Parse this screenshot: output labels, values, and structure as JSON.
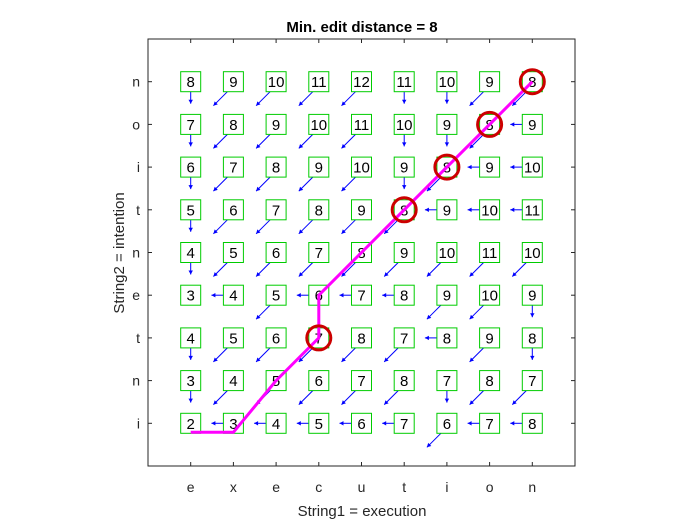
{
  "chart_data": {
    "type": "heatmap",
    "title": "Min. edit distance = 8",
    "xlabel": "String1 = execution",
    "ylabel": "String2 = intention",
    "x_ticks": [
      "e",
      "x",
      "e",
      "c",
      "u",
      "t",
      "i",
      "o",
      "n"
    ],
    "y_ticks": [
      "i",
      "n",
      "t",
      "e",
      "n",
      "t",
      "i",
      "o",
      "n"
    ],
    "grid": false,
    "colors": {
      "cell_box": "#00cc00",
      "arrow": "#0000ff",
      "path": "#ff00ff",
      "circle": "#cc0000",
      "axes": "#262626"
    },
    "values": [
      [
        2,
        3,
        4,
        5,
        6,
        7,
        6,
        7,
        8
      ],
      [
        3,
        4,
        5,
        6,
        7,
        8,
        7,
        8,
        7
      ],
      [
        4,
        5,
        6,
        7,
        8,
        7,
        8,
        9,
        8
      ],
      [
        3,
        4,
        5,
        6,
        7,
        8,
        9,
        10,
        9
      ],
      [
        4,
        5,
        6,
        7,
        8,
        9,
        10,
        11,
        10
      ],
      [
        5,
        6,
        7,
        8,
        9,
        8,
        9,
        10,
        11
      ],
      [
        6,
        7,
        8,
        9,
        10,
        9,
        8,
        9,
        10
      ],
      [
        7,
        8,
        9,
        10,
        11,
        10,
        9,
        8,
        9
      ],
      [
        8,
        9,
        10,
        11,
        12,
        11,
        10,
        9,
        8
      ]
    ],
    "arrows": [
      [
        "",
        "left",
        "left",
        "left",
        "left",
        "left",
        "diag",
        "left",
        "left"
      ],
      [
        "down",
        "diag",
        "diag",
        "diag",
        "diag",
        "diag",
        "down",
        "diag",
        "diag"
      ],
      [
        "down",
        "diag",
        "diag",
        "diag",
        "diag",
        "diag",
        "left",
        "diag",
        "down"
      ],
      [
        "",
        "left",
        "diag",
        "left",
        "left",
        "left",
        "diag",
        "diag",
        "down"
      ],
      [
        "down",
        "diag",
        "diag",
        "diag",
        "diag",
        "diag",
        "diag",
        "diag",
        "diag"
      ],
      [
        "down",
        "diag",
        "diag",
        "diag",
        "diag",
        "diag",
        "left",
        "left",
        "left"
      ],
      [
        "down",
        "diag",
        "diag",
        "diag",
        "diag",
        "down",
        "diag",
        "left",
        "left"
      ],
      [
        "down",
        "diag",
        "diag",
        "diag",
        "diag",
        "down",
        "down",
        "diag",
        "left"
      ],
      [
        "down",
        "diag",
        "diag",
        "diag",
        "diag",
        "down",
        "down",
        "diag",
        "diag"
      ]
    ],
    "path": [
      [
        0,
        0
      ],
      [
        0,
        1
      ],
      [
        1,
        2
      ],
      [
        2,
        3
      ],
      [
        3,
        3
      ],
      [
        4,
        4
      ],
      [
        5,
        5
      ],
      [
        6,
        6
      ],
      [
        7,
        7
      ],
      [
        8,
        8
      ]
    ],
    "circled": [
      [
        2,
        3
      ],
      [
        5,
        5
      ],
      [
        6,
        6
      ],
      [
        7,
        7
      ],
      [
        8,
        8
      ]
    ]
  }
}
